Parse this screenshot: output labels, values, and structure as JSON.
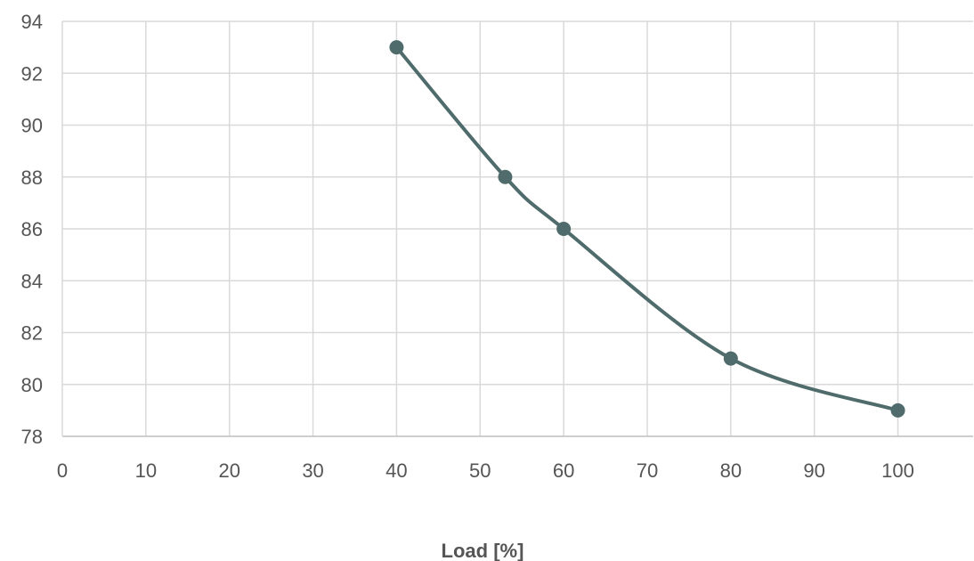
{
  "chart_data": {
    "type": "line",
    "title": "",
    "xlabel": "Load [%]",
    "ylabel": "",
    "xlim": [
      0,
      109
    ],
    "ylim": [
      78,
      94
    ],
    "x_ticks": [
      0,
      10,
      20,
      30,
      40,
      50,
      60,
      70,
      80,
      90,
      100
    ],
    "y_ticks": [
      78,
      80,
      82,
      84,
      86,
      88,
      90,
      92,
      94
    ],
    "grid": true,
    "smooth": true,
    "series": [
      {
        "x": [
          40,
          53,
          60,
          80,
          100
        ],
        "y": [
          93,
          88,
          86,
          81,
          79
        ],
        "color": "#4f6b6b"
      }
    ]
  }
}
